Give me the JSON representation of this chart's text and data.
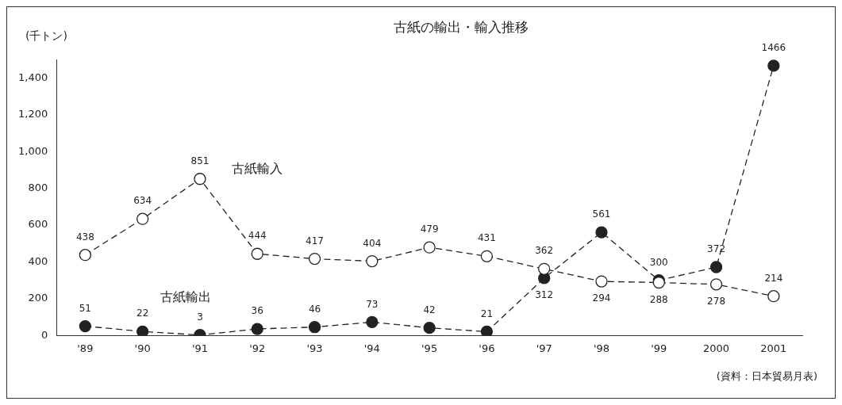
{
  "chart_data": {
    "type": "line",
    "title": "古紙の輸出・輸入推移",
    "ylabel": "(千トン)",
    "categories": [
      "'89",
      "'90",
      "'91",
      "'92",
      "'93",
      "'94",
      "'95",
      "'96",
      "'97",
      "'98",
      "'99",
      "2000",
      "2001"
    ],
    "series": [
      {
        "name": "古紙輸入",
        "color": "#222222",
        "values": [
          438,
          634,
          851,
          444,
          417,
          404,
          479,
          431,
          362,
          294,
          288,
          278,
          214
        ]
      },
      {
        "name": "古紙輸出",
        "color": "#222222",
        "values": [
          51,
          22,
          3,
          36,
          46,
          73,
          42,
          21,
          312,
          561,
          300,
          372,
          1466
        ]
      }
    ],
    "ylim": [
      0,
      1500
    ],
    "yticks": [
      0,
      200,
      400,
      600,
      800,
      {
        "value": 1000,
        "label": "1,000"
      },
      {
        "value": 1200,
        "label": "1,200"
      },
      {
        "value": 1400,
        "label": "1,400"
      }
    ],
    "grid": false,
    "legend": false,
    "marker": "circle",
    "line_style": "dashed",
    "data_labels": true,
    "annotations": [
      "(資料：日本貿易月表)"
    ]
  }
}
